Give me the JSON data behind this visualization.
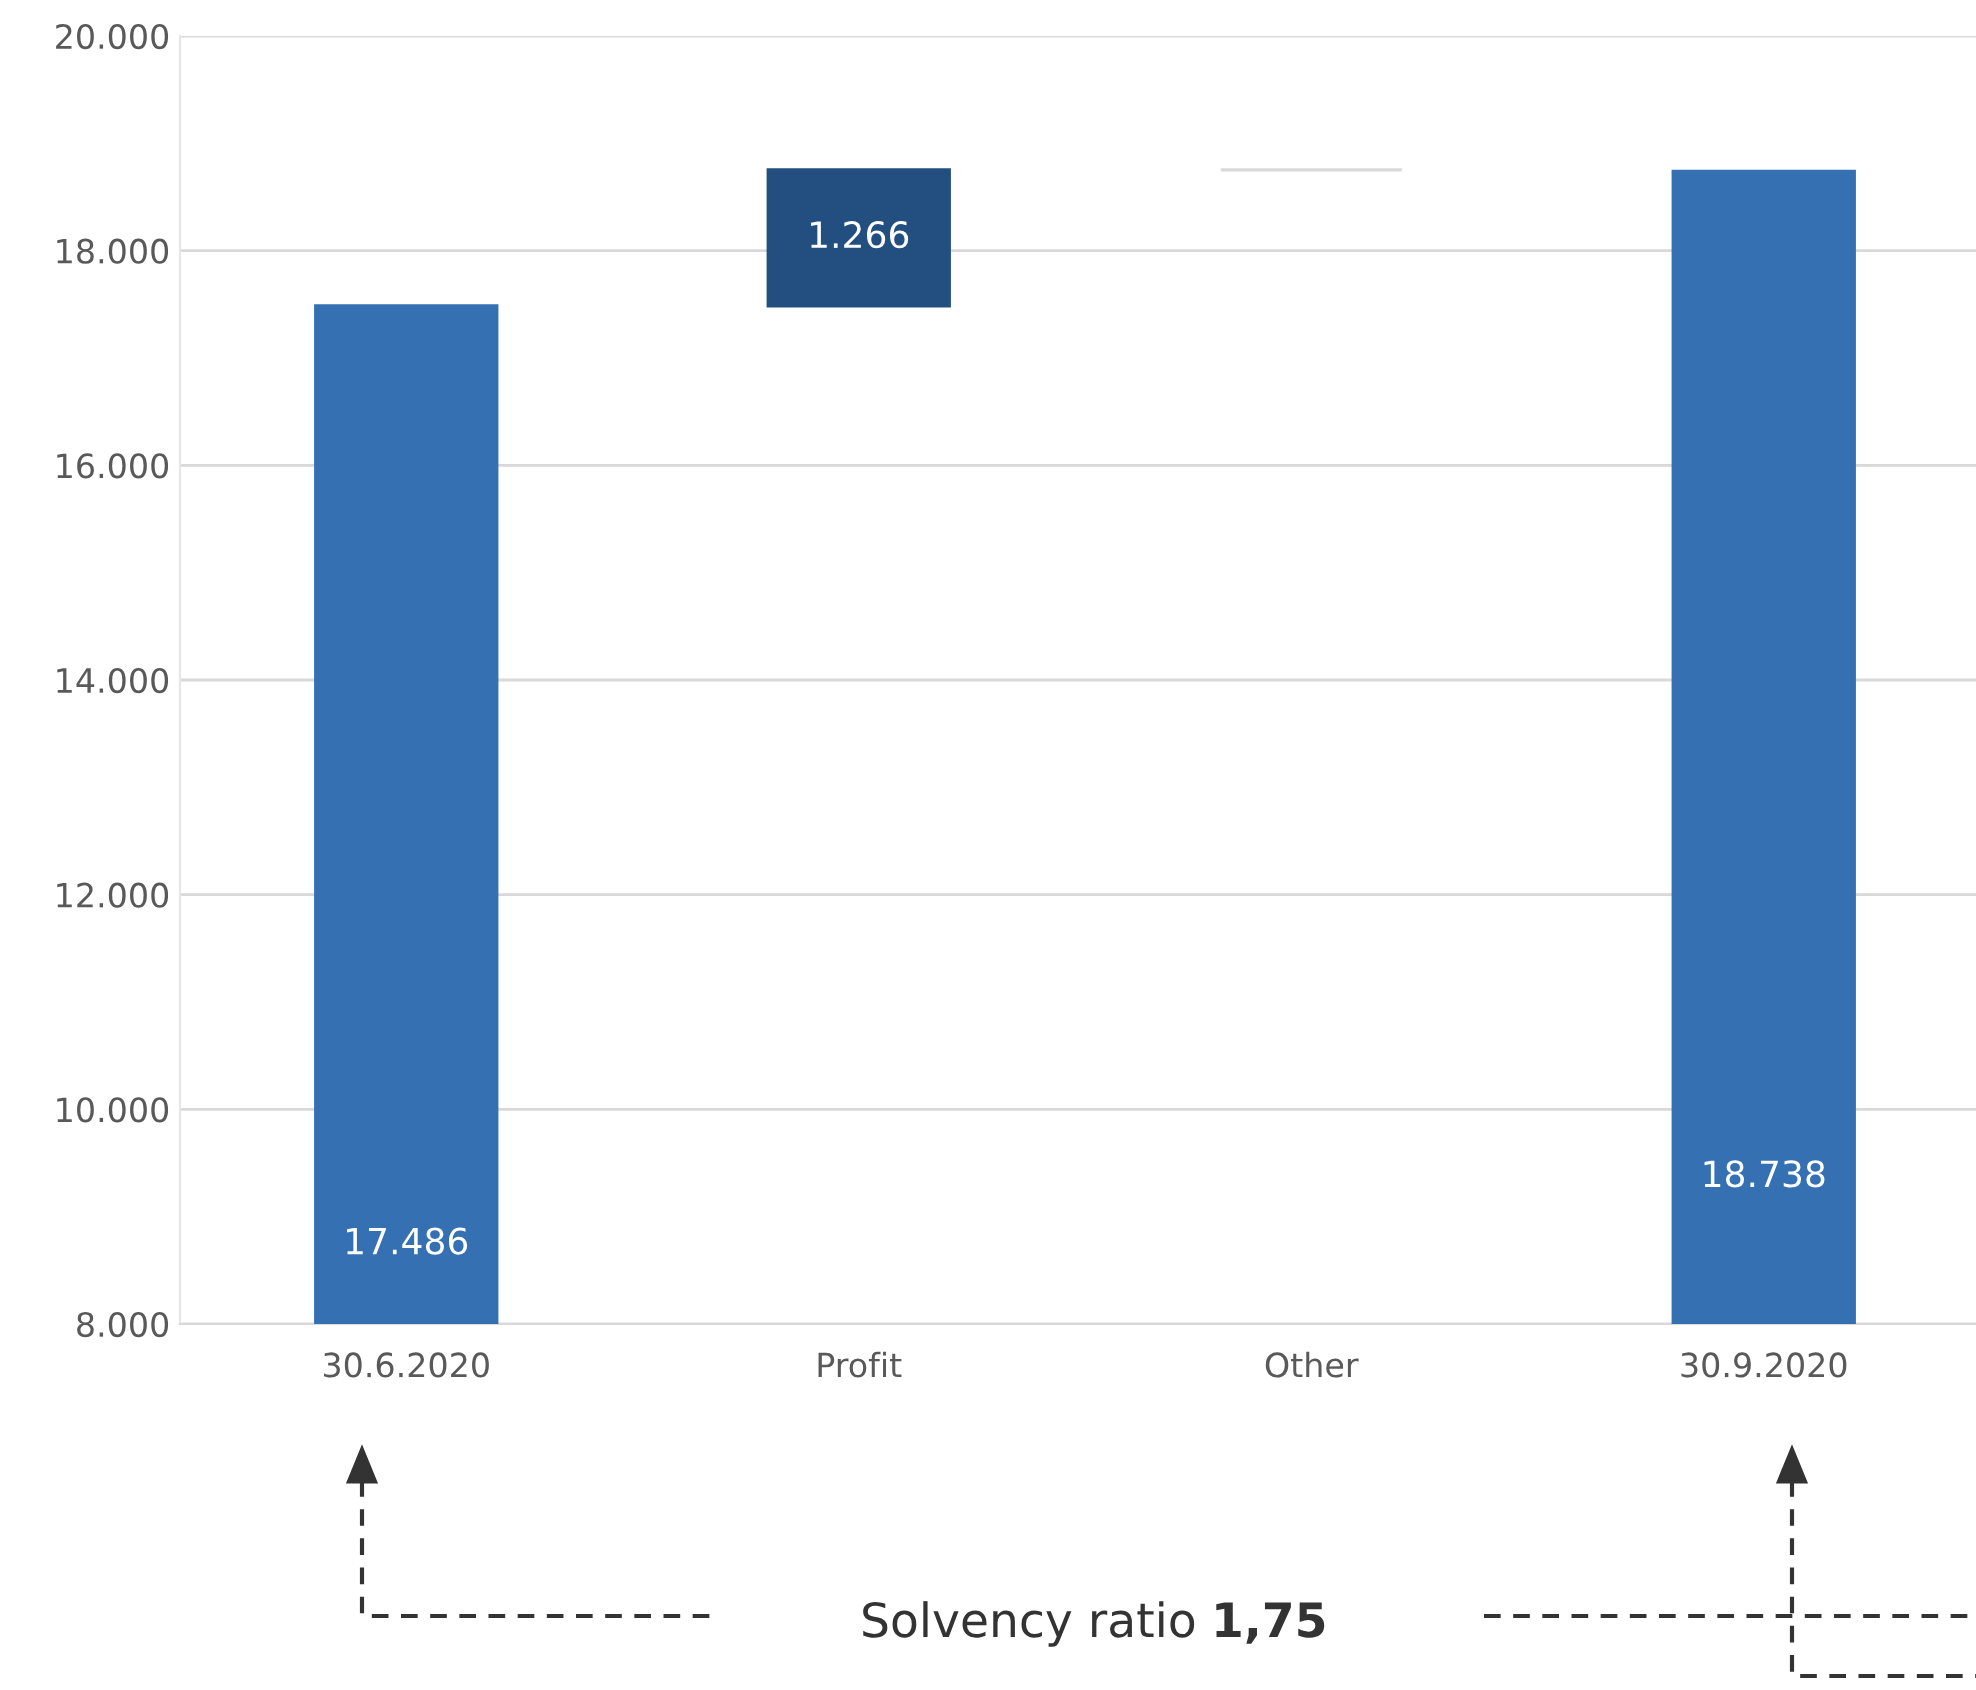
{
  "chart_data": {
    "type": "bar",
    "categories": [
      "30.6.2020",
      "Profit",
      "Other",
      "30.9.2020"
    ],
    "values": [
      17486,
      1266,
      0,
      18738
    ],
    "base": [
      0,
      17486,
      18752,
      0
    ],
    "colors": [
      "#3570b3",
      "#234f80",
      "#d9d9d9",
      "#3570b3"
    ],
    "value_labels": [
      "17.486",
      "1.266",
      null,
      "18.738"
    ],
    "ylim": [
      8000,
      20000
    ],
    "yticks": [
      {
        "value": 8000,
        "label": "8.000"
      },
      {
        "value": 10000,
        "label": "10.000"
      },
      {
        "value": 12000,
        "label": "12.000"
      },
      {
        "value": 14000,
        "label": "14.000"
      },
      {
        "value": 16000,
        "label": "16.000"
      },
      {
        "value": 18000,
        "label": "18.000"
      },
      {
        "value": 20000,
        "label": "20.000"
      }
    ],
    "grid": "y",
    "annotations": [
      "Solvency ratio",
      "1,75"
    ]
  }
}
